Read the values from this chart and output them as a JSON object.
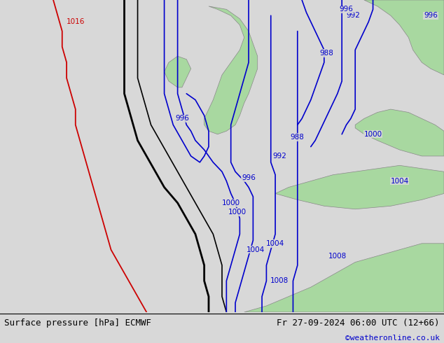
{
  "title_left": "Surface pressure [hPa] ECMWF",
  "title_right": "Fr 27-09-2024 06:00 UTC (12+66)",
  "credit": "©weatheronline.co.uk",
  "bg_color": "#d8d8d8",
  "land_color": "#a8d8a0",
  "sea_color": "#d8d8d8",
  "contour_color_blue": "#0000cc",
  "contour_color_black": "#000000",
  "contour_color_red": "#cc0000",
  "font_size_labels": 9,
  "font_size_bottom": 9,
  "font_size_credit": 8
}
